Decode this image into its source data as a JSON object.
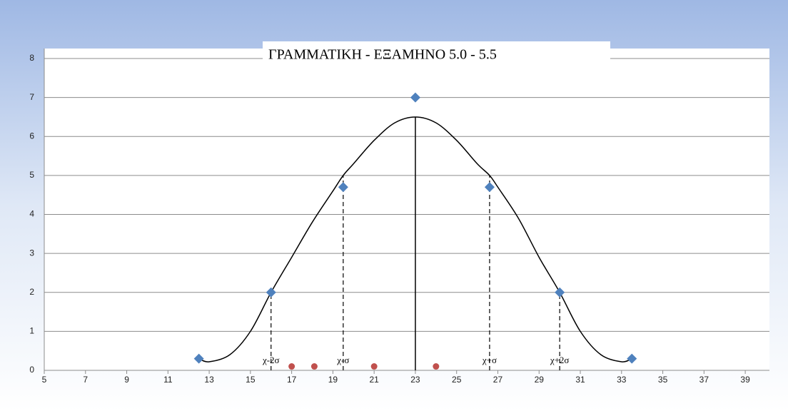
{
  "chart_data": {
    "type": "scatter",
    "title": "ΓΡΑΜΜΑΤΙΚΗ - ΕΞΑΜΗΝΟ 5.0 - 5.5",
    "xlim": [
      5,
      40
    ],
    "xticks": [
      5,
      7,
      9,
      11,
      13,
      15,
      17,
      19,
      21,
      23,
      25,
      27,
      29,
      31,
      33,
      35,
      37,
      39
    ],
    "ylim": [
      0,
      8
    ],
    "yticks": [
      0,
      1,
      2,
      3,
      4,
      5,
      6,
      7,
      8
    ],
    "grid": true,
    "series": [
      {
        "style": "line",
        "color": "#000000",
        "x": [
          12.5,
          13,
          14,
          15,
          16,
          17,
          18,
          19,
          19.5,
          20,
          21,
          22,
          23,
          24,
          25,
          26,
          26.6,
          27,
          28,
          29,
          30,
          31,
          32,
          33,
          33.5
        ],
        "values": [
          0.3,
          0.22,
          0.4,
          1.0,
          2.0,
          2.9,
          3.8,
          4.6,
          5.0,
          5.3,
          5.9,
          6.35,
          6.5,
          6.35,
          5.9,
          5.3,
          5.0,
          4.7,
          3.9,
          2.9,
          2.0,
          1.0,
          0.4,
          0.22,
          0.3
        ]
      },
      {
        "style": "diamond",
        "color": "#4f81bd",
        "x": [
          12.5,
          16,
          19.5,
          23,
          26.6,
          30,
          33.5
        ],
        "values": [
          0.3,
          2,
          4.7,
          7,
          4.7,
          2,
          0.3
        ]
      },
      {
        "style": "circle",
        "color": "#c0504d",
        "x": [
          17,
          18.1,
          21,
          24
        ],
        "values": [
          0.1,
          0.1,
          0.1,
          0.1
        ]
      }
    ],
    "mean_line": {
      "x": 23,
      "y": 6.5
    },
    "markers": [
      {
        "label": "χ-2σ",
        "x": 16,
        "y": 2
      },
      {
        "label": "χ-σ",
        "x": 19.5,
        "y": 5
      },
      {
        "label": "χ+σ",
        "x": 26.6,
        "y": 5
      },
      {
        "label": "χ+2σ",
        "x": 30,
        "y": 2
      }
    ]
  }
}
